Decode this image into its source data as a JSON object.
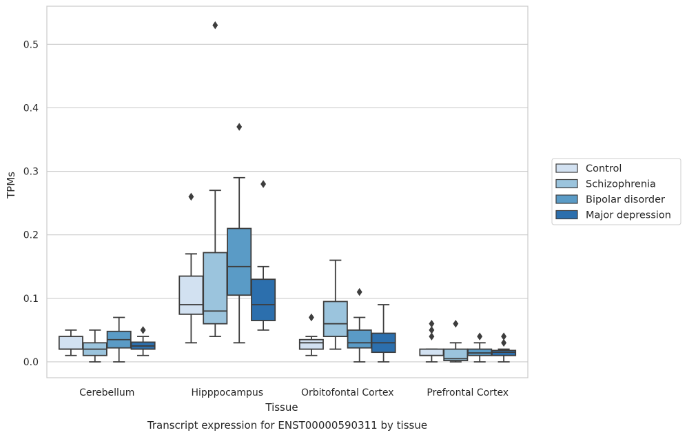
{
  "chart_data": {
    "type": "box",
    "title": "",
    "caption": "Transcript expression for ENST00000590311 by tissue",
    "xlabel": "Tissue",
    "ylabel": "TPMs",
    "ylim": [
      -0.025,
      0.56
    ],
    "yticks": [
      0.0,
      0.1,
      0.2,
      0.3,
      0.4,
      0.5
    ],
    "ytick_labels": [
      "0.0",
      "0.1",
      "0.2",
      "0.3",
      "0.4",
      "0.5"
    ],
    "grid": "horizontal",
    "legend_position": "right",
    "categories": [
      "Cerebellum",
      "Hipppocampus",
      "Orbitofontal Cortex",
      "Prefrontal Cortex"
    ],
    "series": [
      {
        "name": "Control",
        "color": "#d2e1f1",
        "boxes": [
          {
            "whislo": 0.01,
            "q1": 0.02,
            "med": 0.02,
            "q3": 0.04,
            "whishi": 0.05,
            "fliers": []
          },
          {
            "whislo": 0.03,
            "q1": 0.075,
            "med": 0.09,
            "q3": 0.135,
            "whishi": 0.17,
            "fliers": [
              0.26
            ]
          },
          {
            "whislo": 0.01,
            "q1": 0.02,
            "med": 0.03,
            "q3": 0.035,
            "whishi": 0.04,
            "fliers": [
              0.07
            ]
          },
          {
            "whislo": 0.0,
            "q1": 0.01,
            "med": 0.01,
            "q3": 0.02,
            "whishi": 0.02,
            "fliers": [
              0.04,
              0.05,
              0.06
            ]
          }
        ]
      },
      {
        "name": "Schizophrenia",
        "color": "#9bc4dd",
        "boxes": [
          {
            "whislo": 0.0,
            "q1": 0.01,
            "med": 0.02,
            "q3": 0.03,
            "whishi": 0.05,
            "fliers": []
          },
          {
            "whislo": 0.04,
            "q1": 0.06,
            "med": 0.08,
            "q3": 0.172,
            "whishi": 0.27,
            "fliers": [
              0.53
            ]
          },
          {
            "whislo": 0.02,
            "q1": 0.04,
            "med": 0.06,
            "q3": 0.095,
            "whishi": 0.16,
            "fliers": []
          },
          {
            "whislo": 0.0,
            "q1": 0.002,
            "med": 0.005,
            "q3": 0.02,
            "whishi": 0.03,
            "fliers": [
              0.06
            ]
          }
        ]
      },
      {
        "name": "Bipolar disorder",
        "color": "#5a9bc6",
        "boxes": [
          {
            "whislo": 0.0,
            "q1": 0.022,
            "med": 0.035,
            "q3": 0.048,
            "whishi": 0.07,
            "fliers": []
          },
          {
            "whislo": 0.03,
            "q1": 0.105,
            "med": 0.15,
            "q3": 0.21,
            "whishi": 0.29,
            "fliers": [
              0.37
            ]
          },
          {
            "whislo": 0.0,
            "q1": 0.022,
            "med": 0.03,
            "q3": 0.05,
            "whishi": 0.07,
            "fliers": [
              0.11
            ]
          },
          {
            "whislo": 0.0,
            "q1": 0.01,
            "med": 0.014,
            "q3": 0.02,
            "whishi": 0.03,
            "fliers": [
              0.04
            ]
          }
        ]
      },
      {
        "name": "Major depression",
        "color": "#2c6fad",
        "boxes": [
          {
            "whislo": 0.01,
            "q1": 0.02,
            "med": 0.025,
            "q3": 0.031,
            "whishi": 0.04,
            "fliers": [
              0.05
            ]
          },
          {
            "whislo": 0.05,
            "q1": 0.065,
            "med": 0.09,
            "q3": 0.13,
            "whishi": 0.15,
            "fliers": [
              0.28
            ]
          },
          {
            "whislo": 0.0,
            "q1": 0.015,
            "med": 0.03,
            "q3": 0.045,
            "whishi": 0.09,
            "fliers": []
          },
          {
            "whislo": 0.0,
            "q1": 0.01,
            "med": 0.015,
            "q3": 0.018,
            "whishi": 0.02,
            "fliers": [
              0.03,
              0.04
            ]
          }
        ]
      }
    ]
  }
}
